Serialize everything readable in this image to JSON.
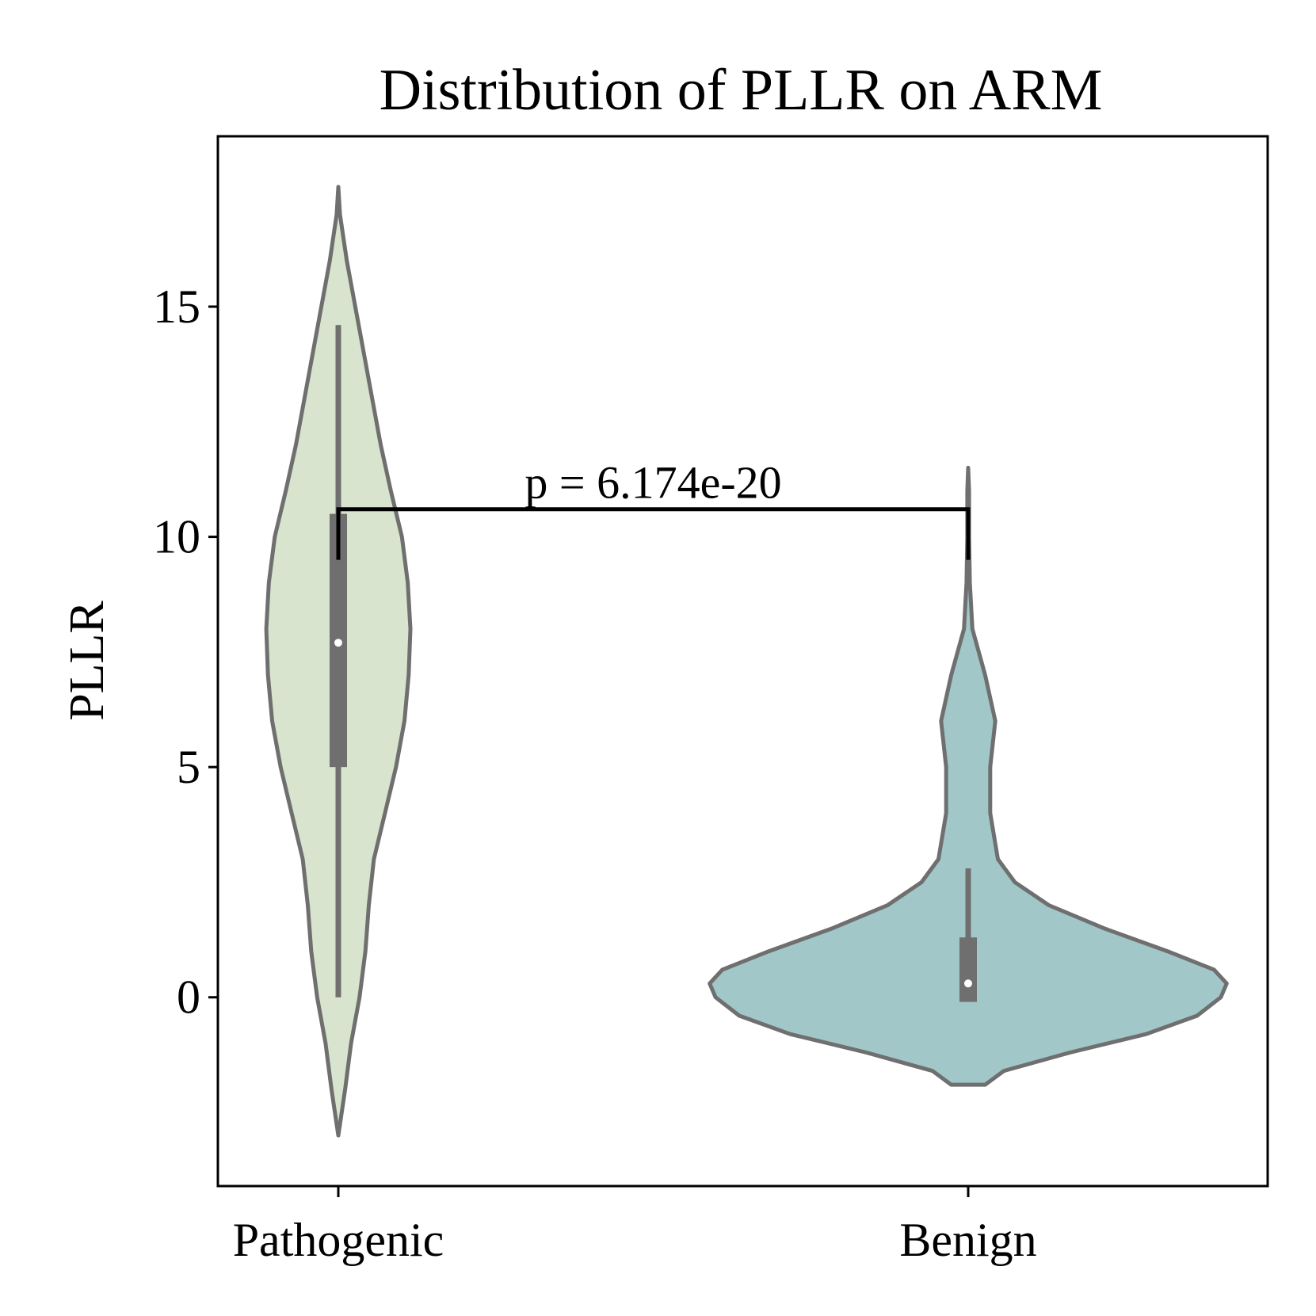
{
  "chart_data": {
    "type": "violin",
    "title": "Distribution of PLLR on ARM",
    "xlabel": "",
    "ylabel": "PLLR",
    "ylim": [
      -4.1,
      18.7
    ],
    "yticks": [
      "0",
      "5",
      "10",
      "15"
    ],
    "categories": [
      "Pathogenic",
      "Benign"
    ],
    "grid": false,
    "series": [
      {
        "category": "Pathogenic",
        "color": "#d8e4ce",
        "range": [
          -3.0,
          17.6
        ],
        "whisker": [
          0.0,
          14.6
        ],
        "q1": 5.0,
        "q3": 10.5,
        "median": 7.7,
        "profile": [
          [
            -3.0,
            0.0
          ],
          [
            -2.0,
            0.08
          ],
          [
            -1.0,
            0.15
          ],
          [
            0.0,
            0.25
          ],
          [
            1.0,
            0.32
          ],
          [
            2.0,
            0.36
          ],
          [
            3.0,
            0.42
          ],
          [
            4.0,
            0.55
          ],
          [
            5.0,
            0.68
          ],
          [
            6.0,
            0.78
          ],
          [
            7.0,
            0.83
          ],
          [
            8.0,
            0.85
          ],
          [
            9.0,
            0.82
          ],
          [
            10.0,
            0.75
          ],
          [
            11.0,
            0.62
          ],
          [
            12.0,
            0.5
          ],
          [
            13.0,
            0.4
          ],
          [
            14.0,
            0.3
          ],
          [
            15.0,
            0.2
          ],
          [
            16.0,
            0.1
          ],
          [
            17.0,
            0.02
          ],
          [
            17.6,
            0.0
          ]
        ]
      },
      {
        "category": "Benign",
        "color": "#a1c7c8",
        "range": [
          -1.9,
          11.5
        ],
        "whisker": [
          -0.1,
          2.8
        ],
        "q1": -0.1,
        "q3": 1.3,
        "median": 0.3,
        "profile": [
          [
            -1.9,
            0.2
          ],
          [
            -1.6,
            0.42
          ],
          [
            -1.2,
            1.2
          ],
          [
            -0.8,
            2.1
          ],
          [
            -0.4,
            2.7
          ],
          [
            0.0,
            2.98
          ],
          [
            0.3,
            3.05
          ],
          [
            0.6,
            2.9
          ],
          [
            1.0,
            2.35
          ],
          [
            1.5,
            1.6
          ],
          [
            2.0,
            0.95
          ],
          [
            2.5,
            0.55
          ],
          [
            3.0,
            0.35
          ],
          [
            4.0,
            0.26
          ],
          [
            5.0,
            0.26
          ],
          [
            6.0,
            0.32
          ],
          [
            7.0,
            0.2
          ],
          [
            8.0,
            0.05
          ],
          [
            9.0,
            0.02
          ],
          [
            10.0,
            0.01
          ],
          [
            11.0,
            0.01
          ],
          [
            11.5,
            0.0
          ]
        ]
      }
    ],
    "annotation": {
      "text": "p = 6.174e-20",
      "bracket_y": 10.6,
      "bracket_drop_to": 9.5
    },
    "colors": {
      "outline": "#6f6f6f",
      "box": "#6f6f6f",
      "median_dot": "#ffffff",
      "bracket": "#000000"
    }
  }
}
